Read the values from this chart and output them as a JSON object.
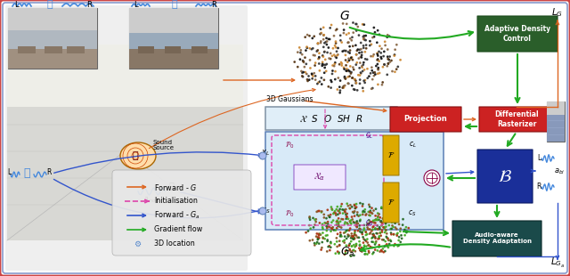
{
  "bg_color": "#f2f2f8",
  "outer_border_color": "#cc4444",
  "inner_border_color": "#8899cc",
  "RED": "#cc2222",
  "DARK_GREEN": "#2a5e2a",
  "DARK_TEAL": "#1a4a4a",
  "BLUE": "#1a2f99",
  "LIGHT_BLUE_BG": "#d8eaf8",
  "ARROW_ORANGE": "#dd6622",
  "ARROW_PINK": "#dd44aa",
  "ARROW_BLUE": "#3355cc",
  "ARROW_GREEN": "#22aa22",
  "legend_items": [
    {
      "color": "#dd6622",
      "style": "solid",
      "label": "Forward - $G$"
    },
    {
      "color": "#dd44aa",
      "style": "dashed",
      "label": "Initialisation"
    },
    {
      "color": "#3355cc",
      "style": "solid",
      "label": "Forward - $G_a$"
    },
    {
      "color": "#22aa22",
      "style": "solid",
      "label": "Gradient flow"
    },
    {
      "color": "#6699cc",
      "style": "symbol",
      "label": "3D location"
    }
  ]
}
